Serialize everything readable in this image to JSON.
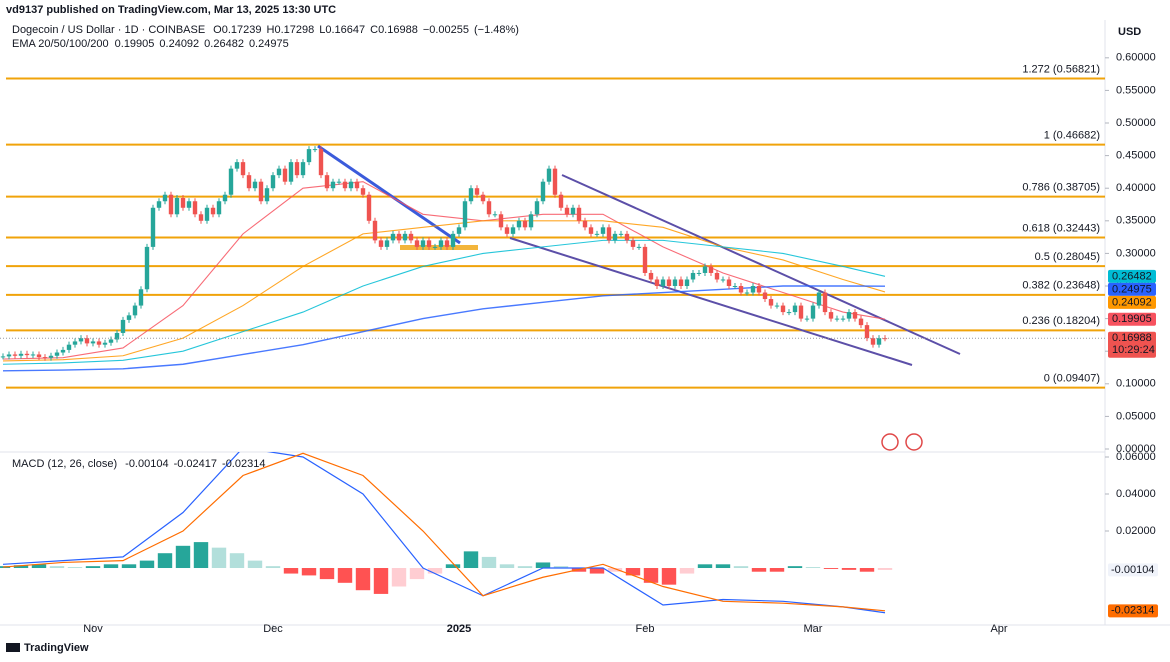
{
  "header": {
    "publisher": "vd9137 published on TradingView.com, Mar 13, 2025 13:30 UTC",
    "currency": "USD",
    "brand": "TradingView"
  },
  "chart_data": [
    {
      "type": "candlestick",
      "title": "Dogecoin / US Dollar · 1D · COINBASE",
      "ohlc": [
        {
          "label": "O",
          "value": 0.17239
        },
        {
          "label": "H",
          "value": 0.17298
        },
        {
          "label": "L",
          "value": 0.16647
        },
        {
          "label": "C",
          "value": 0.16988
        }
      ],
      "change": {
        "value": -0.00255,
        "label": "−0.00255"
      },
      "change_pct": {
        "value": -1.48,
        "label": "(−1.48%)"
      },
      "countdown": "10:29:24",
      "up_color": "#26a69a",
      "down_color": "#ef5350",
      "closes": [
        0.142,
        0.145,
        0.143,
        0.146,
        0.144,
        0.145,
        0.141,
        0.14,
        0.143,
        0.148,
        0.152,
        0.16,
        0.165,
        0.17,
        0.162,
        0.165,
        0.16,
        0.163,
        0.168,
        0.178,
        0.198,
        0.205,
        0.22,
        0.245,
        0.31,
        0.37,
        0.38,
        0.39,
        0.36,
        0.385,
        0.37,
        0.38,
        0.36,
        0.35,
        0.37,
        0.36,
        0.38,
        0.39,
        0.43,
        0.44,
        0.42,
        0.4,
        0.41,
        0.38,
        0.4,
        0.42,
        0.43,
        0.41,
        0.44,
        0.42,
        0.44,
        0.46,
        0.46,
        0.42,
        0.4,
        0.41,
        0.41,
        0.4,
        0.41,
        0.4,
        0.39,
        0.35,
        0.32,
        0.31,
        0.32,
        0.33,
        0.32,
        0.33,
        0.32,
        0.31,
        0.32,
        0.31,
        0.31,
        0.32,
        0.31,
        0.33,
        0.34,
        0.38,
        0.4,
        0.39,
        0.38,
        0.36,
        0.36,
        0.34,
        0.33,
        0.34,
        0.35,
        0.34,
        0.36,
        0.38,
        0.41,
        0.43,
        0.39,
        0.37,
        0.36,
        0.37,
        0.35,
        0.34,
        0.33,
        0.33,
        0.34,
        0.32,
        0.33,
        0.33,
        0.32,
        0.31,
        0.31,
        0.27,
        0.26,
        0.25,
        0.26,
        0.25,
        0.26,
        0.25,
        0.26,
        0.27,
        0.27,
        0.28,
        0.27,
        0.26,
        0.26,
        0.25,
        0.25,
        0.24,
        0.24,
        0.25,
        0.24,
        0.23,
        0.22,
        0.22,
        0.21,
        0.21,
        0.22,
        0.2,
        0.2,
        0.22,
        0.24,
        0.21,
        0.2,
        0.2,
        0.2,
        0.21,
        0.2,
        0.19,
        0.17,
        0.16,
        0.17,
        0.16988
      ],
      "indicator": "EMA 20/50/100/200",
      "series": [
        {
          "color": "#f7525f",
          "x": [
            0,
            10,
            20,
            30,
            40,
            50,
            60,
            70,
            80,
            90,
            100,
            110,
            120,
            130,
            140,
            147
          ],
          "values": [
            0.138,
            0.14,
            0.155,
            0.22,
            0.33,
            0.4,
            0.41,
            0.36,
            0.35,
            0.36,
            0.36,
            0.31,
            0.27,
            0.24,
            0.21,
            0.19905
          ]
        },
        {
          "color": "#ff9800",
          "x": [
            0,
            10,
            20,
            30,
            40,
            50,
            60,
            70,
            80,
            90,
            100,
            110,
            120,
            130,
            140,
            147
          ],
          "values": [
            0.135,
            0.137,
            0.143,
            0.17,
            0.22,
            0.28,
            0.33,
            0.34,
            0.35,
            0.35,
            0.35,
            0.34,
            0.31,
            0.29,
            0.26,
            0.24092
          ]
        },
        {
          "color": "#00bcd4",
          "x": [
            0,
            10,
            20,
            30,
            40,
            50,
            60,
            70,
            80,
            90,
            100,
            110,
            120,
            130,
            140,
            147
          ],
          "values": [
            0.13,
            0.132,
            0.136,
            0.15,
            0.18,
            0.21,
            0.25,
            0.28,
            0.3,
            0.31,
            0.32,
            0.32,
            0.31,
            0.3,
            0.28,
            0.26482
          ]
        },
        {
          "color": "#2962ff",
          "x": [
            0,
            10,
            20,
            30,
            40,
            50,
            60,
            70,
            80,
            90,
            100,
            110,
            120,
            130,
            140,
            147
          ],
          "values": [
            0.12,
            0.121,
            0.123,
            0.13,
            0.145,
            0.16,
            0.18,
            0.2,
            0.215,
            0.225,
            0.235,
            0.24,
            0.245,
            0.25,
            0.25,
            0.24975
          ]
        }
      ],
      "fib_color": "#f0a30a",
      "fib_levels": [
        {
          "value": 0.56821,
          "label": "1.272 (0.56821)"
        },
        {
          "value": 0.46682,
          "label": "1 (0.46682)"
        },
        {
          "value": 0.38705,
          "label": "0.786 (0.38705)"
        },
        {
          "value": 0.32443,
          "label": "0.618 (0.32443)"
        },
        {
          "value": 0.28045,
          "label": "0.5 (0.28045)"
        },
        {
          "value": 0.23648,
          "label": "0.382 (0.23648)"
        },
        {
          "value": 0.18204,
          "label": "0.236 (0.18204)"
        },
        {
          "value": 0.09407,
          "label": "0 (0.09407)"
        }
      ],
      "xlim": [
        -0.5,
        183.5
      ],
      "xticks": [
        {
          "value": 15,
          "label": "Nov"
        },
        {
          "value": 45,
          "label": "Dec"
        },
        {
          "value": 76,
          "label": "2025"
        },
        {
          "value": 107,
          "label": "Feb"
        },
        {
          "value": 135,
          "label": "Mar"
        },
        {
          "value": 166,
          "label": "Apr"
        }
      ],
      "ylim": [
        0,
        0.658
      ],
      "yticks": [
        {
          "value": 0.6,
          "label": "0.60000"
        },
        {
          "value": 0.55,
          "label": "0.55000"
        },
        {
          "value": 0.5,
          "label": "0.50000"
        },
        {
          "value": 0.45,
          "label": "0.45000"
        },
        {
          "value": 0.4,
          "label": "0.40000"
        },
        {
          "value": 0.35,
          "label": "0.35000"
        },
        {
          "value": 0.3,
          "label": "0.30000"
        },
        {
          "value": 0.25,
          "label": "0.25000"
        },
        {
          "value": 0.2,
          "label": "0.20000"
        },
        {
          "value": 0.15,
          "label": "0.15000"
        },
        {
          "value": 0.1,
          "label": "0.10000"
        },
        {
          "value": 0.05,
          "label": "0.05000"
        },
        {
          "value": 0,
          "label": "0.00000"
        }
      ]
    },
    {
      "type": "macd",
      "title": "MACD (12, 26, close)",
      "histogram": {
        "x": [
          0,
          3,
          6,
          9,
          12,
          15,
          18,
          21,
          24,
          27,
          30,
          33,
          36,
          39,
          42,
          45,
          48,
          51,
          54,
          57,
          60,
          63,
          66,
          69,
          72,
          75,
          78,
          81,
          84,
          87,
          90,
          93,
          96,
          99,
          102,
          105,
          108,
          111,
          114,
          117,
          120,
          123,
          126,
          129,
          132,
          135,
          138,
          141,
          144,
          147
        ],
        "values": [
          0.001,
          0.0015,
          0.002,
          0.001,
          0.0005,
          0.001,
          0.002,
          0.002,
          0.004,
          0.008,
          0.012,
          0.014,
          0.011,
          0.008,
          0.004,
          0.001,
          -0.003,
          -0.004,
          -0.006,
          -0.008,
          -0.012,
          -0.014,
          -0.01,
          -0.006,
          -0.003,
          0.002,
          0.009,
          0.006,
          0.002,
          0.001,
          0.003,
          0.001,
          -0.002,
          -0.003,
          -0.002,
          -0.004,
          -0.008,
          -0.009,
          -0.003,
          0.002,
          0.002,
          0.001,
          -0.002,
          -0.002,
          0.001,
          0.0005,
          -0.0005,
          -0.001,
          -0.002,
          -0.00104
        ],
        "colors": [
          "#26a69a",
          "#b2dfdb",
          "#ff5252",
          "#ffcdd2"
        ]
      },
      "series": [
        {
          "color": "#2962ff",
          "x": [
            0,
            10,
            20,
            30,
            40,
            50,
            60,
            70,
            80,
            90,
            100,
            110,
            120,
            130,
            140,
            147
          ],
          "values": [
            0.002,
            0.004,
            0.006,
            0.03,
            0.065,
            0.06,
            0.04,
            0.0,
            -0.015,
            0.0,
            0.0,
            -0.02,
            -0.017,
            -0.018,
            -0.021,
            -0.02417
          ]
        },
        {
          "color": "#ff6d00",
          "x": [
            0,
            10,
            20,
            30,
            40,
            50,
            60,
            70,
            80,
            90,
            100,
            110,
            120,
            130,
            140,
            147
          ],
          "values": [
            0.0005,
            0.003,
            0.004,
            0.02,
            0.05,
            0.062,
            0.05,
            0.02,
            -0.015,
            -0.005,
            0.002,
            -0.01,
            -0.018,
            -0.019,
            -0.021,
            -0.02314
          ]
        }
      ],
      "ylim": [
        -0.0308,
        0.0627
      ],
      "yticks": [
        {
          "value": 0.06,
          "label": "0.06000"
        },
        {
          "value": 0.04,
          "label": "0.04000"
        },
        {
          "value": 0.02,
          "label": "0.02000"
        }
      ]
    }
  ]
}
